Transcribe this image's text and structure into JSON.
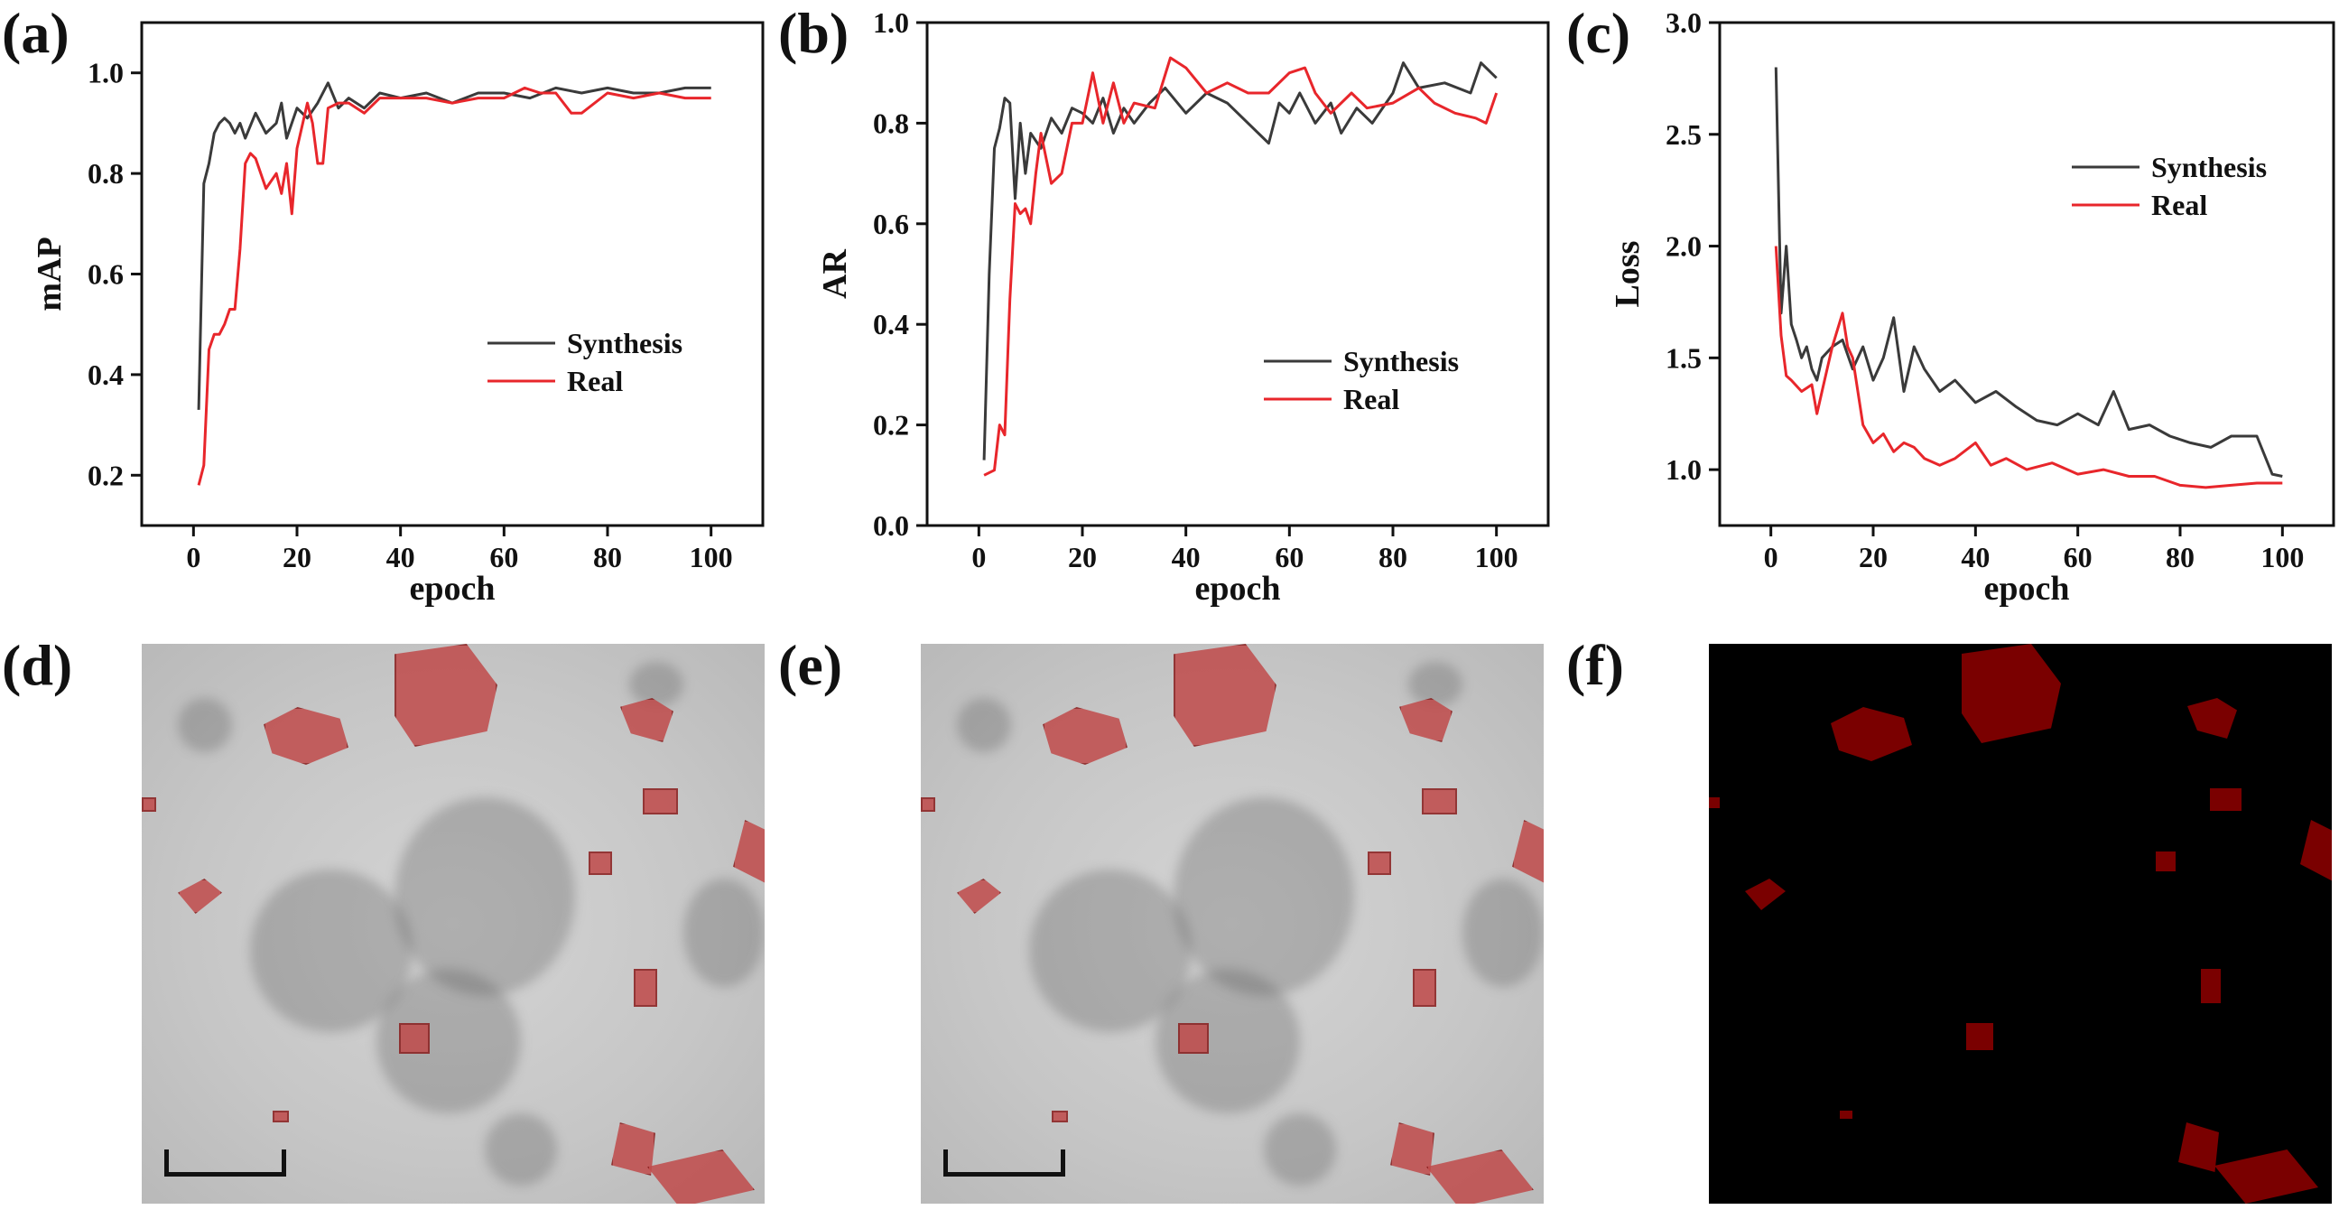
{
  "panels": {
    "a": "(a)",
    "b": "(b)",
    "c": "(c)",
    "d": "(d)",
    "e": "(e)",
    "f": "(f)"
  },
  "colors": {
    "synthesis": "#3a3a3a",
    "real": "#e8262b",
    "crystal": "#c04a4a",
    "mask_crystal": "#7a0000"
  },
  "chart_data": [
    {
      "type": "line",
      "id": "a",
      "xlabel": "epoch",
      "ylabel": "mAP",
      "xlim": [
        -10,
        110
      ],
      "ylim": [
        0.1,
        1.1
      ],
      "xticks": [
        0,
        20,
        40,
        60,
        80,
        100
      ],
      "yticks": [
        0.2,
        0.4,
        0.6,
        0.8,
        1.0
      ],
      "ytick_labels": [
        "0.2",
        "0.4",
        "0.6",
        "0.8",
        "1.0"
      ],
      "legend": [
        "Synthesis",
        "Real"
      ],
      "legend_position": "center-right",
      "series": [
        {
          "name": "Synthesis",
          "x": [
            1,
            2,
            3,
            4,
            5,
            6,
            7,
            8,
            9,
            10,
            12,
            14,
            16,
            17,
            18,
            20,
            22,
            24,
            26,
            28,
            30,
            33,
            36,
            40,
            45,
            50,
            55,
            60,
            65,
            70,
            75,
            80,
            85,
            90,
            95,
            100
          ],
          "values": [
            0.33,
            0.78,
            0.82,
            0.88,
            0.9,
            0.91,
            0.9,
            0.88,
            0.9,
            0.87,
            0.92,
            0.88,
            0.9,
            0.94,
            0.87,
            0.93,
            0.91,
            0.94,
            0.98,
            0.93,
            0.95,
            0.93,
            0.96,
            0.95,
            0.96,
            0.94,
            0.96,
            0.96,
            0.95,
            0.97,
            0.96,
            0.97,
            0.96,
            0.96,
            0.97,
            0.97
          ]
        },
        {
          "name": "Real",
          "x": [
            1,
            2,
            3,
            4,
            5,
            6,
            7,
            8,
            9,
            10,
            11,
            12,
            14,
            16,
            17,
            18,
            19,
            20,
            22,
            23,
            24,
            25,
            26,
            28,
            30,
            33,
            36,
            40,
            45,
            50,
            55,
            60,
            64,
            67,
            70,
            73,
            75,
            80,
            85,
            90,
            95,
            100
          ],
          "values": [
            0.18,
            0.22,
            0.45,
            0.48,
            0.48,
            0.5,
            0.53,
            0.53,
            0.65,
            0.82,
            0.84,
            0.83,
            0.77,
            0.8,
            0.76,
            0.82,
            0.72,
            0.85,
            0.94,
            0.9,
            0.82,
            0.82,
            0.93,
            0.94,
            0.94,
            0.92,
            0.95,
            0.95,
            0.95,
            0.94,
            0.95,
            0.95,
            0.97,
            0.96,
            0.96,
            0.92,
            0.92,
            0.96,
            0.95,
            0.96,
            0.95,
            0.95
          ]
        }
      ]
    },
    {
      "type": "line",
      "id": "b",
      "xlabel": "epoch",
      "ylabel": "AR",
      "xlim": [
        -10,
        110
      ],
      "ylim": [
        0.0,
        1.0
      ],
      "xticks": [
        0,
        20,
        40,
        60,
        80,
        100
      ],
      "yticks": [
        0.0,
        0.2,
        0.4,
        0.6,
        0.8,
        1.0
      ],
      "ytick_labels": [
        "0.0",
        "0.2",
        "0.4",
        "0.6",
        "0.8",
        "1.0"
      ],
      "legend": [
        "Synthesis",
        "Real"
      ],
      "legend_position": "center-right",
      "series": [
        {
          "name": "Synthesis",
          "x": [
            1,
            2,
            3,
            4,
            5,
            6,
            7,
            8,
            9,
            10,
            12,
            14,
            16,
            18,
            20,
            22,
            24,
            26,
            28,
            30,
            33,
            36,
            40,
            44,
            48,
            52,
            56,
            58,
            60,
            62,
            65,
            68,
            70,
            73,
            76,
            80,
            82,
            85,
            90,
            95,
            97,
            100
          ],
          "values": [
            0.13,
            0.5,
            0.75,
            0.79,
            0.85,
            0.84,
            0.65,
            0.8,
            0.7,
            0.78,
            0.75,
            0.81,
            0.78,
            0.83,
            0.82,
            0.8,
            0.85,
            0.78,
            0.83,
            0.8,
            0.84,
            0.87,
            0.82,
            0.86,
            0.84,
            0.8,
            0.76,
            0.84,
            0.82,
            0.86,
            0.8,
            0.84,
            0.78,
            0.83,
            0.8,
            0.86,
            0.92,
            0.87,
            0.88,
            0.86,
            0.92,
            0.89
          ]
        },
        {
          "name": "Real",
          "x": [
            1,
            3,
            4,
            5,
            6,
            7,
            8,
            9,
            10,
            11,
            12,
            14,
            16,
            18,
            20,
            22,
            24,
            26,
            28,
            30,
            34,
            37,
            40,
            44,
            48,
            52,
            56,
            60,
            63,
            65,
            68,
            72,
            75,
            80,
            85,
            88,
            92,
            96,
            98,
            100
          ],
          "values": [
            0.1,
            0.11,
            0.2,
            0.18,
            0.45,
            0.64,
            0.62,
            0.63,
            0.6,
            0.7,
            0.78,
            0.68,
            0.7,
            0.8,
            0.8,
            0.9,
            0.8,
            0.88,
            0.8,
            0.84,
            0.83,
            0.93,
            0.91,
            0.86,
            0.88,
            0.86,
            0.86,
            0.9,
            0.91,
            0.86,
            0.82,
            0.86,
            0.83,
            0.84,
            0.87,
            0.84,
            0.82,
            0.81,
            0.8,
            0.86
          ]
        }
      ]
    },
    {
      "type": "line",
      "id": "c",
      "xlabel": "epoch",
      "ylabel": "Loss",
      "xlim": [
        -10,
        110
      ],
      "ylim": [
        0.75,
        3.0
      ],
      "xticks": [
        0,
        20,
        40,
        60,
        80,
        100
      ],
      "yticks": [
        1.0,
        1.5,
        2.0,
        2.5,
        3.0
      ],
      "ytick_labels": [
        "1.0",
        "1.5",
        "2.0",
        "2.5",
        "3.0"
      ],
      "legend": [
        "Synthesis",
        "Real"
      ],
      "legend_position": "top-right",
      "series": [
        {
          "name": "Synthesis",
          "x": [
            1,
            2,
            3,
            4,
            5,
            6,
            7,
            8,
            9,
            10,
            12,
            14,
            16,
            18,
            20,
            22,
            24,
            26,
            28,
            30,
            33,
            36,
            40,
            44,
            48,
            52,
            56,
            60,
            64,
            67,
            70,
            74,
            78,
            82,
            86,
            90,
            95,
            98,
            100
          ],
          "values": [
            2.8,
            1.7,
            2.0,
            1.65,
            1.58,
            1.5,
            1.55,
            1.45,
            1.4,
            1.5,
            1.55,
            1.58,
            1.45,
            1.55,
            1.4,
            1.5,
            1.68,
            1.35,
            1.55,
            1.45,
            1.35,
            1.4,
            1.3,
            1.35,
            1.28,
            1.22,
            1.2,
            1.25,
            1.2,
            1.35,
            1.18,
            1.2,
            1.15,
            1.12,
            1.1,
            1.15,
            1.15,
            0.98,
            0.97
          ]
        },
        {
          "name": "Real",
          "x": [
            1,
            2,
            3,
            4,
            6,
            8,
            9,
            10,
            11,
            12,
            14,
            15,
            16,
            18,
            20,
            22,
            24,
            26,
            28,
            30,
            33,
            36,
            40,
            43,
            46,
            50,
            55,
            60,
            65,
            70,
            75,
            80,
            85,
            90,
            95,
            100
          ],
          "values": [
            2.0,
            1.6,
            1.42,
            1.4,
            1.35,
            1.38,
            1.25,
            1.35,
            1.45,
            1.55,
            1.7,
            1.55,
            1.5,
            1.2,
            1.12,
            1.16,
            1.08,
            1.12,
            1.1,
            1.05,
            1.02,
            1.05,
            1.12,
            1.02,
            1.05,
            1.0,
            1.03,
            0.98,
            1.0,
            0.97,
            0.97,
            0.93,
            0.92,
            0.93,
            0.94,
            0.94
          ]
        }
      ]
    }
  ]
}
